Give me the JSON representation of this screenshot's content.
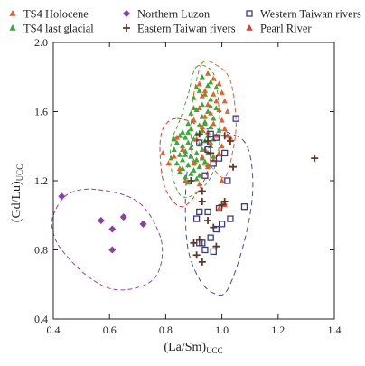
{
  "chart_data": {
    "type": "scatter",
    "title": "",
    "xlabel": {
      "main": "(La/Sm)",
      "sub": "UCC"
    },
    "ylabel": {
      "main": "(Gd/Lu)",
      "sub": "UCC"
    },
    "xlim": [
      0.4,
      1.4
    ],
    "ylim": [
      0.4,
      2.0
    ],
    "x_ticks": [
      "0.4",
      "0.6",
      "0.8",
      "1.0",
      "1.2",
      "1.4"
    ],
    "x_tick_values": [
      0.4,
      0.6,
      0.8,
      1.0,
      1.2,
      1.4
    ],
    "y_ticks": [
      "0.4",
      "0.8",
      "1.2",
      "1.6",
      "2.0"
    ],
    "y_tick_values": [
      0.4,
      0.8,
      1.2,
      1.6,
      2.0
    ],
    "grid": false,
    "legend_position": "top",
    "series": [
      {
        "name": "TS4 Holocene",
        "marker": "triangle",
        "color": "#f05a28",
        "filled": true,
        "points": [
          [
            0.95,
            1.82
          ],
          [
            0.97,
            1.79
          ],
          [
            0.92,
            1.76
          ],
          [
            0.99,
            1.76
          ],
          [
            0.94,
            1.72
          ],
          [
            0.97,
            1.7
          ],
          [
            1.0,
            1.71
          ],
          [
            0.93,
            1.69
          ],
          [
            0.98,
            1.66
          ],
          [
            1.01,
            1.66
          ],
          [
            0.95,
            1.64
          ],
          [
            0.92,
            1.62
          ],
          [
            0.99,
            1.61
          ],
          [
            1.02,
            1.6
          ],
          [
            0.96,
            1.59
          ],
          [
            0.94,
            1.57
          ],
          [
            1.0,
            1.55
          ],
          [
            0.97,
            1.53
          ],
          [
            0.93,
            1.51
          ],
          [
            1.01,
            1.5
          ],
          [
            0.95,
            1.48
          ],
          [
            0.98,
            1.46
          ],
          [
            1.03,
            1.45
          ],
          [
            0.91,
            1.44
          ],
          [
            0.96,
            1.42
          ],
          [
            1.0,
            1.4
          ],
          [
            0.94,
            1.38
          ],
          [
            0.99,
            1.36
          ],
          [
            0.93,
            1.34
          ],
          [
            0.97,
            1.32
          ],
          [
            0.9,
            1.3
          ],
          [
            0.95,
            1.28
          ],
          [
            0.84,
            1.45
          ],
          [
            0.86,
            1.38
          ],
          [
            0.83,
            1.34
          ],
          [
            0.79,
            1.36
          ],
          [
            0.81,
            1.3
          ],
          [
            0.85,
            1.27
          ],
          [
            0.87,
            1.2
          ],
          [
            0.92,
            1.18
          ],
          [
            1.0,
            1.2
          ],
          [
            1.01,
            1.06
          ],
          [
            0.99,
            1.04
          ],
          [
            1.02,
            1.46
          ],
          [
            0.9,
            1.55
          ]
        ]
      },
      {
        "name": "TS4 last glacial",
        "marker": "triangle",
        "color": "#3aa935",
        "filled": true,
        "points": [
          [
            0.93,
            1.8
          ],
          [
            0.96,
            1.77
          ],
          [
            0.91,
            1.74
          ],
          [
            0.98,
            1.74
          ],
          [
            0.94,
            1.7
          ],
          [
            0.9,
            1.68
          ],
          [
            0.96,
            1.67
          ],
          [
            0.93,
            1.64
          ],
          [
            0.98,
            1.62
          ],
          [
            0.91,
            1.61
          ],
          [
            0.95,
            1.6
          ],
          [
            0.89,
            1.59
          ],
          [
            0.93,
            1.57
          ],
          [
            0.97,
            1.56
          ],
          [
            0.9,
            1.55
          ],
          [
            0.94,
            1.54
          ],
          [
            0.88,
            1.53
          ],
          [
            0.92,
            1.52
          ],
          [
            0.96,
            1.51
          ],
          [
            0.89,
            1.5
          ],
          [
            0.93,
            1.49
          ],
          [
            0.86,
            1.48
          ],
          [
            0.91,
            1.47
          ],
          [
            0.95,
            1.46
          ],
          [
            0.87,
            1.45
          ],
          [
            0.9,
            1.44
          ],
          [
            0.94,
            1.43
          ],
          [
            0.84,
            1.42
          ],
          [
            0.88,
            1.42
          ],
          [
            0.92,
            1.41
          ],
          [
            0.96,
            1.4
          ],
          [
            0.86,
            1.4
          ],
          [
            0.89,
            1.39
          ],
          [
            0.93,
            1.38
          ],
          [
            0.83,
            1.38
          ],
          [
            0.87,
            1.37
          ],
          [
            0.91,
            1.36
          ],
          [
            0.95,
            1.36
          ],
          [
            0.85,
            1.35
          ],
          [
            0.89,
            1.34
          ],
          [
            0.93,
            1.33
          ],
          [
            0.82,
            1.33
          ],
          [
            0.86,
            1.32
          ],
          [
            0.9,
            1.31
          ],
          [
            0.94,
            1.31
          ],
          [
            0.84,
            1.3
          ],
          [
            0.88,
            1.29
          ],
          [
            0.92,
            1.28
          ],
          [
            0.86,
            1.27
          ],
          [
            0.9,
            1.26
          ],
          [
            0.85,
            1.25
          ],
          [
            0.89,
            1.24
          ],
          [
            0.87,
            1.22
          ],
          [
            0.91,
            1.21
          ],
          [
            0.88,
            1.19
          ],
          [
            0.92,
            1.23
          ],
          [
            0.97,
            1.34
          ],
          [
            0.95,
            1.29
          ],
          [
            0.97,
            1.44
          ],
          [
            0.99,
            1.49
          ],
          [
            0.85,
            1.46
          ],
          [
            0.88,
            1.48
          ],
          [
            0.91,
            1.32
          ],
          [
            0.87,
            1.35
          ],
          [
            0.83,
            1.44
          ],
          [
            0.94,
            1.53
          ],
          [
            0.9,
            1.62
          ],
          [
            0.96,
            1.63
          ],
          [
            0.92,
            1.72
          ],
          [
            0.95,
            1.75
          ]
        ]
      },
      {
        "name": "Northern Luzon",
        "marker": "diamond",
        "color": "#8b3ea8",
        "filled": true,
        "points": [
          [
            0.43,
            1.11
          ],
          [
            0.57,
            0.97
          ],
          [
            0.61,
            0.92
          ],
          [
            0.65,
            0.99
          ],
          [
            0.72,
            0.95
          ],
          [
            0.61,
            0.8
          ]
        ]
      },
      {
        "name": "Eastern Taiwan rivers",
        "marker": "plus",
        "color": "#5a3a28",
        "filled": true,
        "points": [
          [
            0.92,
            1.47
          ],
          [
            0.95,
            1.43
          ],
          [
            1.01,
            1.46
          ],
          [
            1.03,
            1.43
          ],
          [
            0.96,
            1.36
          ],
          [
            1.04,
            1.28
          ],
          [
            0.89,
            1.2
          ],
          [
            0.93,
            1.14
          ],
          [
            0.93,
            1.08
          ],
          [
            0.95,
            0.97
          ],
          [
            0.97,
            0.93
          ],
          [
            0.9,
            0.84
          ],
          [
            0.92,
            0.86
          ],
          [
            1.0,
            1.06
          ],
          [
            1.01,
            1.08
          ],
          [
            0.93,
            0.73
          ],
          [
            0.98,
            0.82
          ],
          [
            0.91,
            0.77
          ],
          [
            1.33,
            1.33
          ]
        ]
      },
      {
        "name": "Western Taiwan rivers",
        "marker": "square",
        "color": "#3a3a8c",
        "filled": false,
        "points": [
          [
            0.96,
            1.47
          ],
          [
            0.98,
            1.45
          ],
          [
            1.05,
            1.56
          ],
          [
            0.92,
            1.42
          ],
          [
            0.95,
            1.38
          ],
          [
            0.99,
            1.33
          ],
          [
            0.97,
            1.3
          ],
          [
            1.01,
            1.36
          ],
          [
            1.02,
            1.2
          ],
          [
            0.94,
            1.23
          ],
          [
            0.92,
            1.02
          ],
          [
            0.95,
            1.02
          ],
          [
            0.91,
            0.98
          ],
          [
            0.93,
            0.84
          ],
          [
            0.96,
            0.87
          ],
          [
            0.98,
            0.92
          ],
          [
            1.0,
            0.95
          ],
          [
            1.03,
            0.98
          ],
          [
            1.08,
            1.05
          ],
          [
            0.94,
            0.8
          ],
          [
            0.97,
            0.79
          ],
          [
            0.92,
            0.84
          ],
          [
            0.99,
            1.04
          ]
        ]
      },
      {
        "name": "Pearl River",
        "marker": "triangle",
        "color": "#e8352d",
        "filled": true,
        "points": [
          [
            1.01,
            1.07
          ]
        ]
      }
    ],
    "envelopes": [
      {
        "series": "Northern Luzon",
        "color": "#9b3fa8",
        "dash": "5,3",
        "outline": [
          [
            0.4,
            1.0
          ],
          [
            0.45,
            1.12
          ],
          [
            0.55,
            1.15
          ],
          [
            0.7,
            1.08
          ],
          [
            0.78,
            0.88
          ],
          [
            0.78,
            0.7
          ],
          [
            0.73,
            0.6
          ],
          [
            0.62,
            0.57
          ],
          [
            0.52,
            0.65
          ],
          [
            0.43,
            0.8
          ],
          [
            0.4,
            0.9
          ]
        ]
      },
      {
        "series": "TS4 Holocene",
        "color": "#f05a28",
        "dash": "5,3",
        "outline": [
          [
            0.93,
            1.88
          ],
          [
            0.98,
            1.87
          ],
          [
            1.03,
            1.78
          ],
          [
            1.05,
            1.55
          ],
          [
            1.04,
            1.38
          ],
          [
            1.01,
            1.22
          ],
          [
            0.96,
            1.28
          ],
          [
            0.9,
            1.32
          ],
          [
            0.89,
            1.5
          ],
          [
            0.9,
            1.7
          ]
        ]
      },
      {
        "series": "TS4 last glacial",
        "color": "#3aa935",
        "dash": "4,3",
        "outline": [
          [
            0.91,
            1.86
          ],
          [
            0.97,
            1.82
          ],
          [
            0.99,
            1.6
          ],
          [
            0.99,
            1.4
          ],
          [
            0.96,
            1.22
          ],
          [
            0.9,
            1.12
          ],
          [
            0.85,
            1.12
          ],
          [
            0.82,
            1.27
          ],
          [
            0.82,
            1.42
          ],
          [
            0.85,
            1.55
          ],
          [
            0.88,
            1.7
          ]
        ]
      },
      {
        "series": "Pearl River",
        "color": "#e8352d",
        "dash": "5,3",
        "outline": [
          [
            0.84,
            1.56
          ],
          [
            0.93,
            1.5
          ],
          [
            0.96,
            1.35
          ],
          [
            0.93,
            1.18
          ],
          [
            0.86,
            1.05
          ],
          [
            0.8,
            1.15
          ],
          [
            0.78,
            1.35
          ],
          [
            0.79,
            1.5
          ]
        ]
      },
      {
        "series": "Western Taiwan rivers",
        "color": "#3a4bb8",
        "dash": "6,4",
        "outline": [
          [
            0.95,
            1.5
          ],
          [
            1.02,
            1.48
          ],
          [
            1.09,
            1.4
          ],
          [
            1.11,
            1.15
          ],
          [
            1.08,
            0.85
          ],
          [
            1.02,
            0.57
          ],
          [
            0.97,
            0.55
          ],
          [
            0.92,
            0.63
          ],
          [
            0.88,
            0.8
          ],
          [
            0.87,
            1.05
          ],
          [
            0.88,
            1.3
          ],
          [
            0.91,
            1.45
          ]
        ]
      }
    ]
  }
}
